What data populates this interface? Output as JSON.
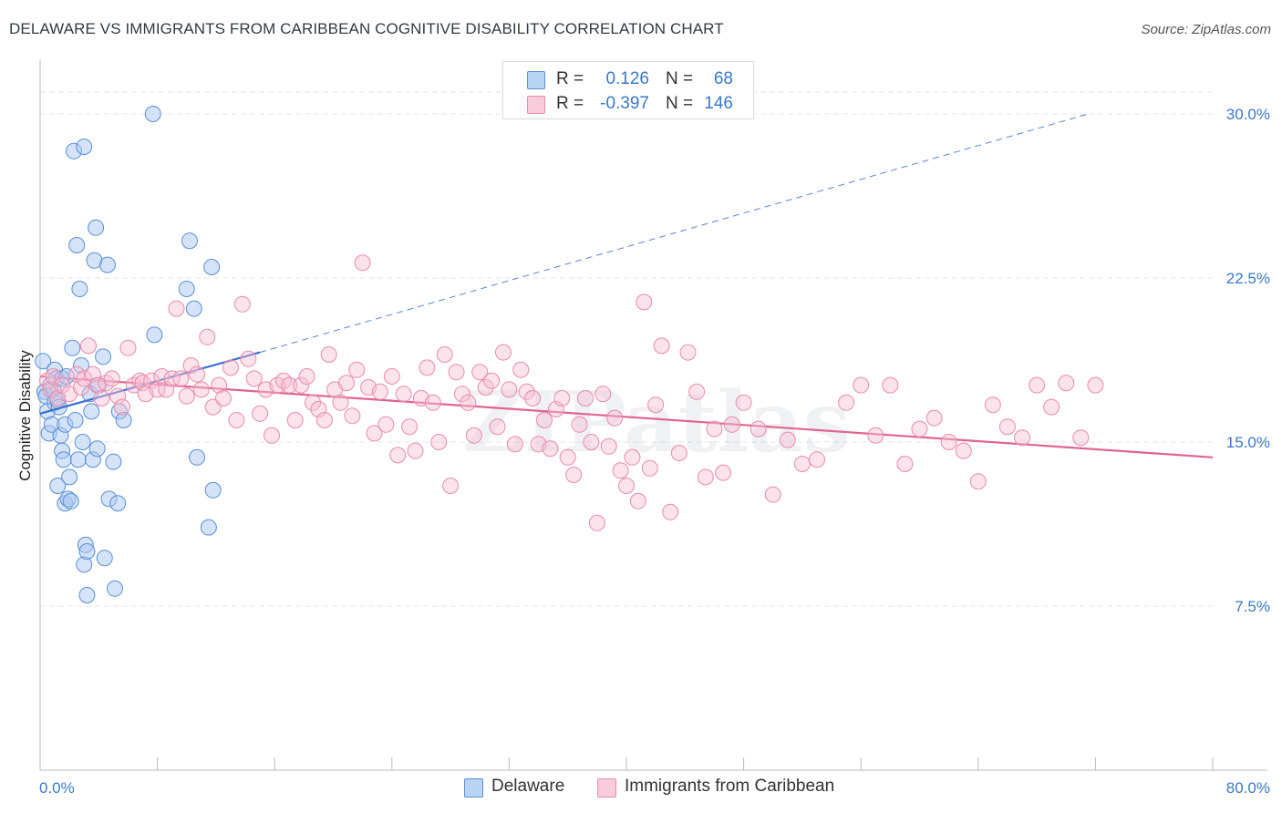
{
  "title": "DELAWARE VS IMMIGRANTS FROM CARIBBEAN COGNITIVE DISABILITY CORRELATION CHART",
  "source": "Source: ZipAtlas.com",
  "watermark": "ZIPatlas",
  "legend": {
    "rows": [
      {
        "r_label": "R =",
        "r_value": "0.126",
        "n_label": "N =",
        "n_value": "68"
      },
      {
        "r_label": "R =",
        "r_value": "-0.397",
        "n_label": "N =",
        "n_value": "146"
      }
    ]
  },
  "bottom_legend": [
    "Delaware",
    "Immigrants from Caribbean"
  ],
  "colors": {
    "delaware_fill": "#a9c8ef",
    "delaware_stroke": "#5b8fd6",
    "delaware_line": "#3a6fd0",
    "caribbean_fill": "#f6bfd2",
    "caribbean_stroke": "#e88cab",
    "caribbean_line": "#e0648f",
    "tick_text": "#3b78c9",
    "grid": "#e4e4e4"
  },
  "chart_data": {
    "type": "scatter",
    "title": "DELAWARE VS IMMIGRANTS FROM CARIBBEAN COGNITIVE DISABILITY CORRELATION CHART",
    "xlabel": "",
    "ylabel": "Cognitive Disability",
    "xlim": [
      0,
      80
    ],
    "ylim": [
      0,
      32.5
    ],
    "x_tick_labels": [
      {
        "value": 0,
        "label": "0.0%"
      },
      {
        "value": 80,
        "label": "80.0%"
      }
    ],
    "y_tick_labels": [
      {
        "value": 7.5,
        "label": "7.5%"
      },
      {
        "value": 15.0,
        "label": "15.0%"
      },
      {
        "value": 22.5,
        "label": "22.5%"
      },
      {
        "value": 30.0,
        "label": "30.0%"
      }
    ],
    "grid": true,
    "series": [
      {
        "name": "Delaware",
        "trend": {
          "x": [
            0,
            15
          ],
          "y": [
            16.3,
            19.1
          ],
          "extended_to": [
            71.5,
            30.0
          ]
        },
        "points": [
          [
            0.2,
            18.7
          ],
          [
            0.3,
            17.3
          ],
          [
            0.4,
            17.1
          ],
          [
            0.5,
            16.4
          ],
          [
            0.6,
            15.4
          ],
          [
            0.7,
            17.6
          ],
          [
            0.8,
            15.8
          ],
          [
            0.9,
            17.4
          ],
          [
            1.0,
            18.3
          ],
          [
            1.0,
            16.8
          ],
          [
            1.1,
            17.9
          ],
          [
            1.2,
            13.0
          ],
          [
            1.2,
            16.9
          ],
          [
            1.3,
            16.6
          ],
          [
            1.4,
            15.3
          ],
          [
            1.5,
            17.9
          ],
          [
            1.5,
            14.6
          ],
          [
            1.6,
            14.2
          ],
          [
            1.7,
            12.2
          ],
          [
            1.7,
            15.8
          ],
          [
            1.8,
            18.0
          ],
          [
            1.9,
            12.4
          ],
          [
            2.0,
            13.4
          ],
          [
            2.1,
            12.3
          ],
          [
            2.2,
            19.3
          ],
          [
            2.3,
            28.3
          ],
          [
            2.4,
            16.0
          ],
          [
            2.5,
            24.0
          ],
          [
            2.6,
            14.2
          ],
          [
            2.7,
            22.0
          ],
          [
            2.8,
            18.5
          ],
          [
            2.9,
            15.0
          ],
          [
            3.0,
            28.5
          ],
          [
            3.0,
            9.4
          ],
          [
            3.1,
            10.3
          ],
          [
            3.2,
            10.0
          ],
          [
            3.2,
            8.0
          ],
          [
            3.4,
            17.2
          ],
          [
            3.5,
            16.4
          ],
          [
            3.6,
            14.2
          ],
          [
            3.7,
            23.3
          ],
          [
            3.8,
            24.8
          ],
          [
            3.9,
            14.7
          ],
          [
            4.0,
            17.6
          ],
          [
            4.3,
            18.9
          ],
          [
            4.4,
            9.7
          ],
          [
            4.6,
            23.1
          ],
          [
            4.7,
            12.4
          ],
          [
            5.0,
            14.1
          ],
          [
            5.1,
            8.3
          ],
          [
            5.3,
            12.2
          ],
          [
            5.4,
            16.4
          ],
          [
            5.7,
            16.0
          ],
          [
            7.7,
            30.0
          ],
          [
            7.8,
            19.9
          ],
          [
            10.0,
            22.0
          ],
          [
            10.2,
            24.2
          ],
          [
            10.5,
            21.1
          ],
          [
            10.7,
            14.3
          ],
          [
            11.5,
            11.1
          ],
          [
            11.7,
            23.0
          ],
          [
            11.8,
            12.8
          ]
        ]
      },
      {
        "name": "Immigrants from Caribbean",
        "trend": {
          "x": [
            0,
            80
          ],
          "y": [
            18.0,
            14.3
          ]
        },
        "points": [
          [
            0.5,
            17.8
          ],
          [
            0.7,
            17.4
          ],
          [
            0.9,
            18.0
          ],
          [
            1.2,
            17.0
          ],
          [
            1.5,
            17.6
          ],
          [
            2.0,
            17.2
          ],
          [
            2.5,
            18.1
          ],
          [
            2.8,
            17.5
          ],
          [
            3.0,
            17.9
          ],
          [
            3.3,
            19.4
          ],
          [
            3.6,
            18.1
          ],
          [
            3.9,
            17.6
          ],
          [
            4.2,
            17.0
          ],
          [
            4.5,
            17.7
          ],
          [
            4.9,
            17.9
          ],
          [
            5.3,
            17.1
          ],
          [
            5.6,
            16.6
          ],
          [
            6.0,
            19.3
          ],
          [
            6.4,
            17.6
          ],
          [
            6.8,
            17.8
          ],
          [
            7.0,
            17.7
          ],
          [
            7.2,
            17.2
          ],
          [
            7.6,
            17.8
          ],
          [
            8.0,
            17.4
          ],
          [
            8.3,
            18.0
          ],
          [
            8.6,
            17.4
          ],
          [
            9.0,
            17.9
          ],
          [
            9.3,
            21.1
          ],
          [
            9.6,
            17.9
          ],
          [
            10.0,
            17.1
          ],
          [
            10.3,
            18.5
          ],
          [
            10.7,
            18.1
          ],
          [
            11.0,
            17.4
          ],
          [
            11.4,
            19.8
          ],
          [
            11.8,
            16.6
          ],
          [
            12.2,
            17.6
          ],
          [
            12.5,
            17.0
          ],
          [
            13.0,
            18.4
          ],
          [
            13.4,
            16.0
          ],
          [
            13.8,
            21.3
          ],
          [
            14.2,
            18.8
          ],
          [
            14.6,
            17.9
          ],
          [
            15.0,
            16.3
          ],
          [
            15.4,
            17.4
          ],
          [
            15.8,
            15.3
          ],
          [
            16.2,
            17.6
          ],
          [
            16.6,
            17.8
          ],
          [
            17.0,
            17.6
          ],
          [
            17.4,
            16.0
          ],
          [
            17.8,
            17.6
          ],
          [
            18.2,
            18.0
          ],
          [
            18.6,
            16.8
          ],
          [
            19.0,
            16.5
          ],
          [
            19.4,
            16.0
          ],
          [
            19.7,
            19.0
          ],
          [
            20.1,
            17.4
          ],
          [
            20.5,
            16.8
          ],
          [
            20.9,
            17.7
          ],
          [
            21.3,
            16.2
          ],
          [
            21.6,
            18.3
          ],
          [
            22.0,
            23.2
          ],
          [
            22.4,
            17.5
          ],
          [
            22.8,
            15.4
          ],
          [
            23.2,
            17.3
          ],
          [
            23.6,
            15.8
          ],
          [
            24.0,
            18.0
          ],
          [
            24.4,
            14.4
          ],
          [
            24.8,
            17.2
          ],
          [
            25.2,
            15.7
          ],
          [
            25.6,
            14.6
          ],
          [
            26.0,
            17.0
          ],
          [
            26.4,
            18.4
          ],
          [
            26.8,
            16.8
          ],
          [
            27.2,
            15.0
          ],
          [
            27.6,
            19.0
          ],
          [
            28.0,
            13.0
          ],
          [
            28.4,
            18.2
          ],
          [
            28.8,
            17.2
          ],
          [
            29.2,
            16.8
          ],
          [
            29.6,
            15.3
          ],
          [
            30.0,
            18.2
          ],
          [
            30.4,
            17.5
          ],
          [
            30.8,
            17.8
          ],
          [
            31.2,
            15.7
          ],
          [
            31.6,
            19.1
          ],
          [
            32.0,
            17.4
          ],
          [
            32.4,
            14.9
          ],
          [
            32.8,
            18.3
          ],
          [
            33.2,
            17.3
          ],
          [
            33.6,
            17.0
          ],
          [
            34.0,
            14.9
          ],
          [
            34.4,
            16.0
          ],
          [
            34.8,
            14.7
          ],
          [
            35.2,
            16.5
          ],
          [
            35.6,
            17.0
          ],
          [
            36.0,
            14.3
          ],
          [
            36.4,
            13.5
          ],
          [
            36.8,
            15.8
          ],
          [
            37.2,
            17.0
          ],
          [
            37.6,
            15.0
          ],
          [
            38.0,
            11.3
          ],
          [
            38.4,
            17.2
          ],
          [
            38.8,
            14.8
          ],
          [
            39.2,
            16.1
          ],
          [
            39.6,
            13.7
          ],
          [
            40.0,
            13.0
          ],
          [
            40.4,
            14.3
          ],
          [
            40.8,
            12.3
          ],
          [
            41.2,
            21.4
          ],
          [
            41.6,
            13.8
          ],
          [
            42.0,
            16.7
          ],
          [
            42.4,
            19.4
          ],
          [
            43.0,
            11.8
          ],
          [
            43.6,
            14.5
          ],
          [
            44.2,
            19.1
          ],
          [
            44.8,
            17.3
          ],
          [
            45.4,
            13.4
          ],
          [
            46.0,
            15.6
          ],
          [
            46.6,
            13.6
          ],
          [
            47.2,
            15.8
          ],
          [
            48.0,
            16.8
          ],
          [
            49.0,
            15.6
          ],
          [
            50.0,
            12.6
          ],
          [
            51.0,
            15.1
          ],
          [
            52.0,
            14.0
          ],
          [
            53.0,
            14.2
          ],
          [
            55.0,
            16.8
          ],
          [
            56.0,
            17.6
          ],
          [
            57.0,
            15.3
          ],
          [
            58.0,
            17.6
          ],
          [
            59.0,
            14.0
          ],
          [
            60.0,
            15.6
          ],
          [
            61.0,
            16.1
          ],
          [
            62.0,
            15.0
          ],
          [
            63.0,
            14.6
          ],
          [
            64.0,
            13.2
          ],
          [
            65.0,
            16.7
          ],
          [
            66.0,
            15.7
          ],
          [
            67.0,
            15.2
          ],
          [
            68.0,
            17.6
          ],
          [
            69.0,
            16.6
          ],
          [
            70.0,
            17.7
          ],
          [
            71.0,
            15.2
          ],
          [
            72.0,
            17.6
          ]
        ]
      }
    ]
  }
}
